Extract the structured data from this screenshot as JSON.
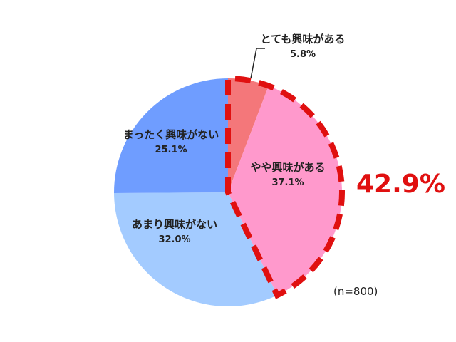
{
  "chart_data": {
    "type": "pie",
    "categories": [
      "とても興味がある",
      "やや興味がある",
      "あまり興味がない",
      "まったく興味がない"
    ],
    "values": [
      5.8,
      37.1,
      32.0,
      25.1
    ],
    "value_labels": [
      "5.8%",
      "37.1%",
      "32.0%",
      "25.1%"
    ],
    "colors": [
      "#f4777a",
      "#ff99cc",
      "#a3cbff",
      "#6f9dff"
    ],
    "annotation": "42.9%",
    "note": "(n=800)"
  }
}
